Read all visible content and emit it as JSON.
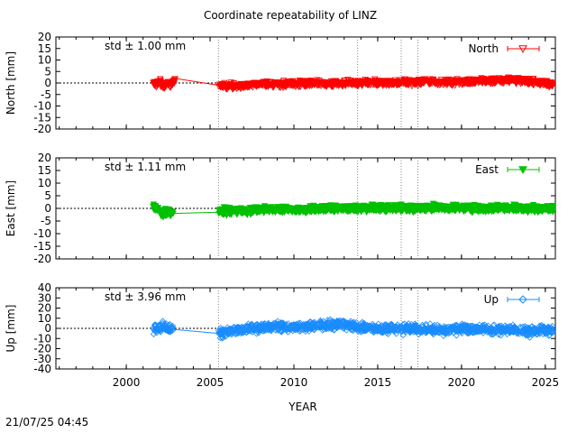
{
  "title": "Coordinate repeatability of LINZ",
  "timestamp": "21/07/25 04:45",
  "chart_data": [
    {
      "type": "scatter",
      "ylabel": "North [mm]",
      "ylim": [
        -20,
        20
      ],
      "yticks": [
        -20,
        -15,
        -10,
        -5,
        0,
        5,
        10,
        15,
        20
      ],
      "xlim": [
        1995.8,
        2025.6
      ],
      "xticks": [
        2000,
        2005,
        2010,
        2015,
        2020,
        2025
      ],
      "std_label": "std ± 1.00 mm",
      "legend": "North",
      "legend_position": "top-right",
      "color": "#ff0000",
      "marker": "triangle-down",
      "zero_line": "dashed",
      "series": [
        {
          "name": "North",
          "points": [
            [
              2001.6,
              0.0
            ],
            [
              2001.8,
              -1.0
            ],
            [
              2002.0,
              1.0
            ],
            [
              2002.2,
              -2.0
            ],
            [
              2002.5,
              0.0
            ],
            [
              2002.7,
              -1.5
            ],
            [
              2002.9,
              2.0
            ],
            [
              2005.5,
              -1.0
            ],
            [
              2006.0,
              -1.5
            ],
            [
              2007.0,
              -1.0
            ],
            [
              2008.0,
              -0.5
            ],
            [
              2009.0,
              -0.5
            ],
            [
              2010.0,
              -0.5
            ],
            [
              2011.0,
              0.0
            ],
            [
              2012.0,
              -0.3
            ],
            [
              2013.0,
              -0.2
            ],
            [
              2014.0,
              0.0
            ],
            [
              2015.0,
              0.2
            ],
            [
              2016.0,
              0.0
            ],
            [
              2017.0,
              0.3
            ],
            [
              2018.0,
              0.5
            ],
            [
              2019.0,
              0.3
            ],
            [
              2020.0,
              0.5
            ],
            [
              2021.0,
              0.8
            ],
            [
              2022.0,
              1.0
            ],
            [
              2023.0,
              1.5
            ],
            [
              2024.0,
              0.5
            ],
            [
              2025.0,
              0.0
            ],
            [
              2025.5,
              -0.5
            ]
          ]
        }
      ],
      "vertical_markers": [
        2005.5,
        2013.8,
        2016.4,
        2017.4
      ]
    },
    {
      "type": "scatter",
      "ylabel": "East [mm]",
      "ylim": [
        -20,
        20
      ],
      "yticks": [
        -20,
        -15,
        -10,
        -5,
        0,
        5,
        10,
        15,
        20
      ],
      "xlim": [
        1995.8,
        2025.6
      ],
      "xticks": [
        2000,
        2005,
        2010,
        2015,
        2020,
        2025
      ],
      "std_label": "std ± 1.11 mm",
      "legend": "East",
      "legend_position": "top-right",
      "color": "#00c000",
      "marker": "triangle-down-filled",
      "zero_line": "dashed",
      "series": [
        {
          "name": "East",
          "points": [
            [
              2001.6,
              1.0
            ],
            [
              2001.8,
              0.0
            ],
            [
              2002.0,
              -1.0
            ],
            [
              2002.2,
              -2.0
            ],
            [
              2002.5,
              -1.5
            ],
            [
              2002.8,
              -2.0
            ],
            [
              2005.5,
              -1.5
            ],
            [
              2006.0,
              -1.0
            ],
            [
              2007.0,
              -1.0
            ],
            [
              2008.0,
              -0.5
            ],
            [
              2009.0,
              -0.5
            ],
            [
              2010.0,
              -0.5
            ],
            [
              2011.0,
              -0.3
            ],
            [
              2012.0,
              -0.2
            ],
            [
              2013.0,
              0.0
            ],
            [
              2014.0,
              0.0
            ],
            [
              2015.0,
              0.0
            ],
            [
              2016.0,
              0.2
            ],
            [
              2017.0,
              0.0
            ],
            [
              2018.0,
              0.2
            ],
            [
              2019.0,
              0.0
            ],
            [
              2020.0,
              0.3
            ],
            [
              2021.0,
              0.0
            ],
            [
              2022.0,
              0.0
            ],
            [
              2023.0,
              0.2
            ],
            [
              2024.0,
              -0.2
            ],
            [
              2025.0,
              0.0
            ],
            [
              2025.5,
              0.0
            ]
          ]
        }
      ],
      "vertical_markers": [
        2005.5,
        2013.8,
        2016.4,
        2017.4
      ]
    },
    {
      "type": "scatter",
      "ylabel": "Up [mm]",
      "ylim": [
        -40,
        40
      ],
      "yticks": [
        -40,
        -30,
        -20,
        -10,
        0,
        10,
        20,
        30,
        40
      ],
      "xlim": [
        1995.8,
        2025.6
      ],
      "xticks": [
        2000,
        2005,
        2010,
        2015,
        2020,
        2025
      ],
      "std_label": "std ± 3.96 mm",
      "legend": "Up",
      "legend_position": "top-right",
      "color": "#1a8cff",
      "marker": "diamond",
      "zero_line": "dashed",
      "series": [
        {
          "name": "Up",
          "points": [
            [
              2001.6,
              -2.0
            ],
            [
              2001.9,
              0.0
            ],
            [
              2002.2,
              2.0
            ],
            [
              2002.5,
              0.0
            ],
            [
              2002.8,
              -1.0
            ],
            [
              2005.5,
              -5.0
            ],
            [
              2006.0,
              -4.0
            ],
            [
              2007.0,
              -1.0
            ],
            [
              2008.0,
              1.0
            ],
            [
              2009.0,
              2.0
            ],
            [
              2010.0,
              1.0
            ],
            [
              2011.0,
              2.0
            ],
            [
              2012.0,
              3.0
            ],
            [
              2013.0,
              4.0
            ],
            [
              2014.0,
              1.0
            ],
            [
              2015.0,
              0.0
            ],
            [
              2016.0,
              -1.0
            ],
            [
              2017.0,
              0.0
            ],
            [
              2018.0,
              -1.0
            ],
            [
              2019.0,
              -2.0
            ],
            [
              2020.0,
              -1.0
            ],
            [
              2021.0,
              -1.0
            ],
            [
              2022.0,
              -2.0
            ],
            [
              2023.0,
              -1.0
            ],
            [
              2024.0,
              -3.0
            ],
            [
              2025.0,
              -2.0
            ],
            [
              2025.5,
              -2.0
            ]
          ]
        }
      ],
      "vertical_markers": [
        2005.5,
        2013.8,
        2016.4,
        2017.4
      ]
    }
  ],
  "xlabel": "YEAR"
}
